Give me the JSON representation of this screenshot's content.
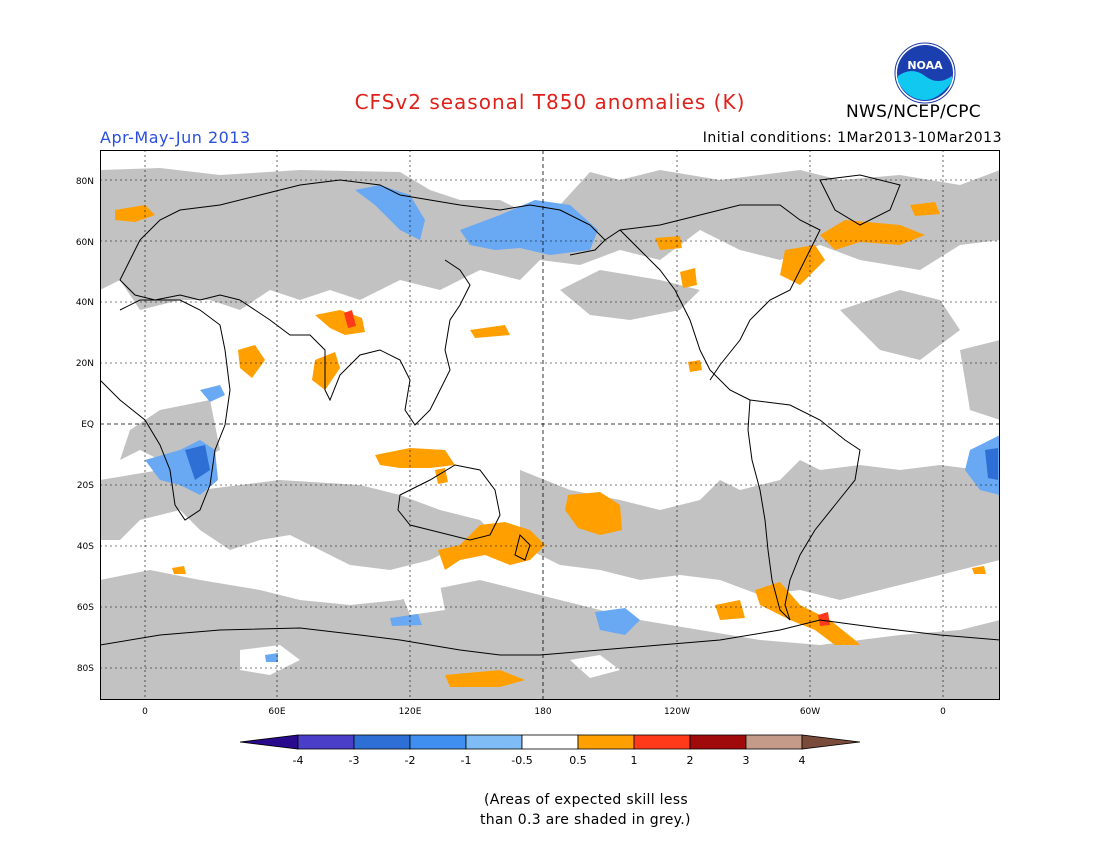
{
  "title": "CFSv2 seasonal T850 anomalies (K)",
  "season": "Apr-May-Jun 2013",
  "initial_conditions": "Initial conditions: 1Mar2013-10Mar2013",
  "agency": "NWS/NCEP/CPC",
  "logo_text": "NOAA",
  "lat_labels": [
    "80N",
    "60N",
    "40N",
    "20N",
    "EQ",
    "20S",
    "40S",
    "60S",
    "80S"
  ],
  "lon_labels": [
    "0",
    "60E",
    "120E",
    "180",
    "120W",
    "60W",
    "0"
  ],
  "colorbar": {
    "labels": [
      "-4",
      "-3",
      "-2",
      "-1",
      "-0.5",
      "0.5",
      "1",
      "2",
      "3",
      "4"
    ],
    "colors": [
      "#2a0a8c",
      "#4a3ec8",
      "#2e6fd6",
      "#3f8ff0",
      "#7fbcf5",
      "#ffffff",
      "#ff9f00",
      "#ff3a1a",
      "#a00a0a",
      "#c49a88",
      "#7a4a3a"
    ]
  },
  "skill_note_line1": "(Areas of expected skill less",
  "skill_note_line2": "than 0.3 are shaded in grey.)",
  "colors": {
    "grey_low_skill": "#c2c2c2",
    "warm": "#ff9f00",
    "cool": "#69a8f2"
  }
}
